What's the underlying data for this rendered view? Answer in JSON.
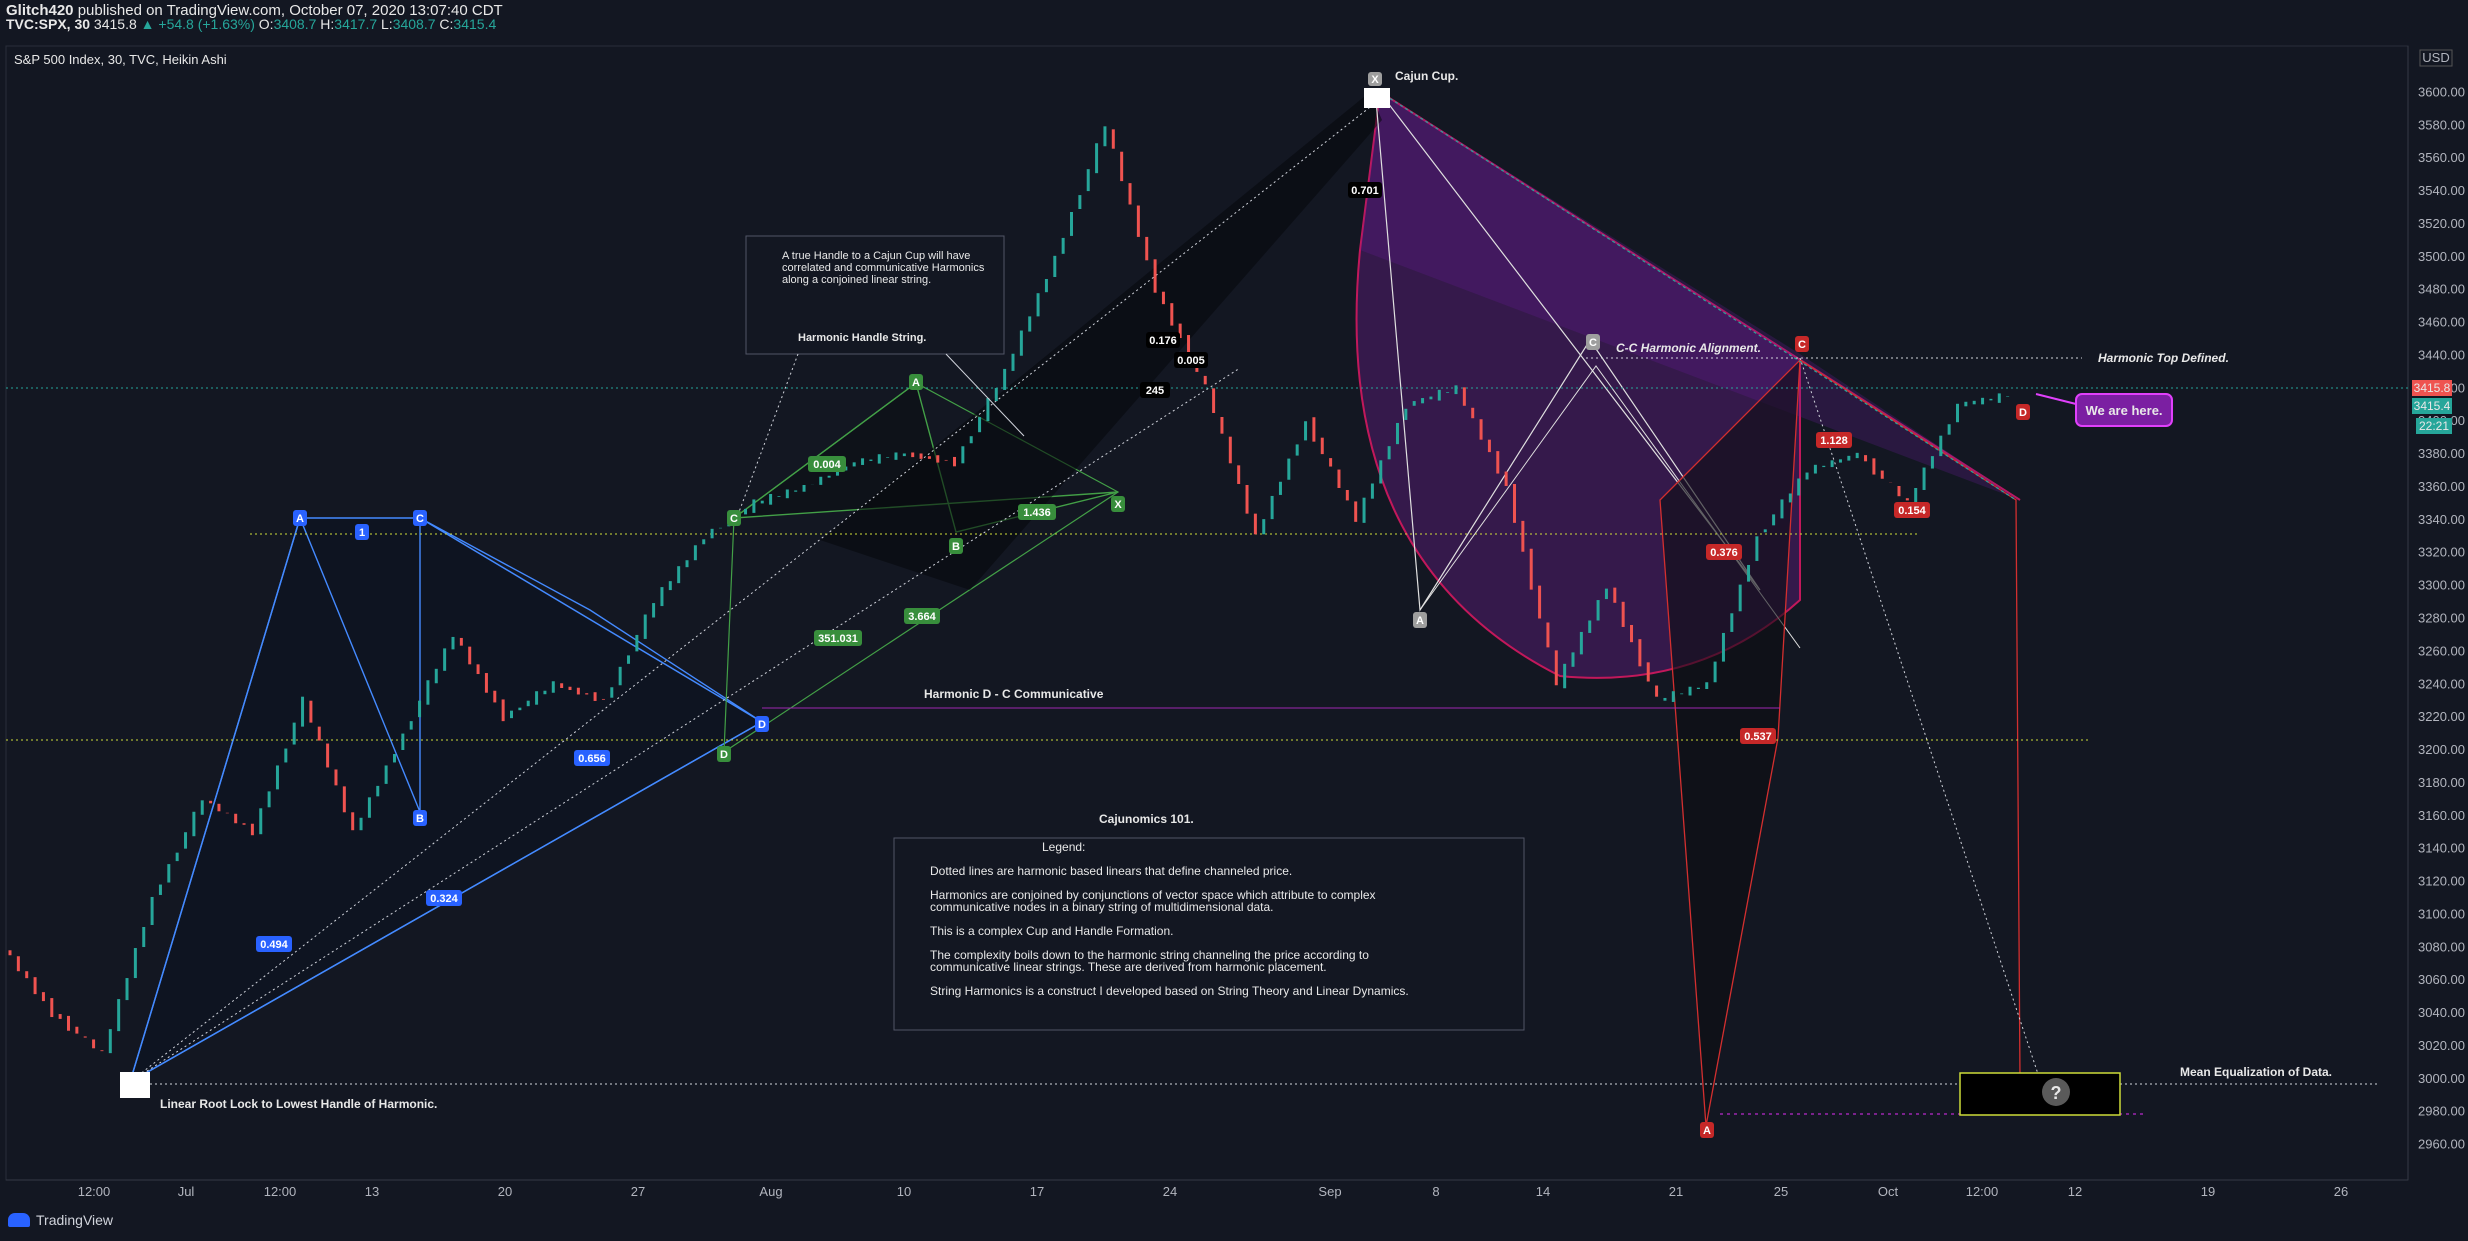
{
  "header": {
    "author": "Glitch420",
    "published_text": "published on TradingView.com, October 07, 2020 13:07:40 CDT",
    "symbol": "TVC:SPX, 30",
    "price": "3415.8",
    "change": "+54.8 (+1.63%)",
    "o_label": "O:",
    "o": "3408.7",
    "h_label": "H:",
    "h": "3417.7",
    "l_label": "L:",
    "l": "3408.7",
    "c_label": "C:",
    "c": "3415.4"
  },
  "legend_title": "S&P 500 Index, 30, TVC, Heikin Ashi",
  "currency": "USD",
  "brand": "TradingView",
  "price_tags": {
    "last": "3415.8",
    "close": "3415.4",
    "timer": "22:21"
  },
  "chart_data": {
    "type": "line",
    "title": "S&P 500 Index, 30, TVC, Heikin Ashi",
    "xlabel": "",
    "ylabel": "",
    "ylim": [
      2950,
      3610
    ],
    "y_ticks": [
      2960,
      2980,
      3000,
      3020,
      3040,
      3060,
      3080,
      3100,
      3120,
      3140,
      3160,
      3180,
      3200,
      3220,
      3240,
      3260,
      3280,
      3300,
      3320,
      3340,
      3360,
      3380,
      3400,
      3420,
      3440,
      3460,
      3480,
      3500,
      3520,
      3540,
      3560,
      3580,
      3600
    ],
    "x_ticks": [
      "12:00",
      "Jul",
      "12:00",
      "13",
      "20",
      "27",
      "Aug",
      "10",
      "17",
      "24",
      "Sep",
      "8",
      "14",
      "21",
      "25",
      "Oct",
      "12:00",
      "12",
      "19",
      "26"
    ],
    "price_path": [
      {
        "x": "Jun 25",
        "y": 3080
      },
      {
        "x": "Jun 26",
        "y": 3040
      },
      {
        "x": "Jun 29",
        "y": 3015
      },
      {
        "x": "Jul 1",
        "y": 3110
      },
      {
        "x": "Jul 6",
        "y": 3170
      },
      {
        "x": "Jul 9",
        "y": 3150
      },
      {
        "x": "Jul 13",
        "y": 3230
      },
      {
        "x": "Jul 14",
        "y": 3150
      },
      {
        "x": "Jul 16",
        "y": 3210
      },
      {
        "x": "Jul 22",
        "y": 3270
      },
      {
        "x": "Jul 24",
        "y": 3220
      },
      {
        "x": "Jul 28",
        "y": 3240
      },
      {
        "x": "Jul 31",
        "y": 3230
      },
      {
        "x": "Aug 3",
        "y": 3290
      },
      {
        "x": "Aug 6",
        "y": 3330
      },
      {
        "x": "Aug 10",
        "y": 3350
      },
      {
        "x": "Aug 12",
        "y": 3360
      },
      {
        "x": "Aug 14",
        "y": 3375
      },
      {
        "x": "Aug 18",
        "y": 3380
      },
      {
        "x": "Aug 21",
        "y": 3375
      },
      {
        "x": "Aug 25",
        "y": 3430
      },
      {
        "x": "Aug 28",
        "y": 3500
      },
      {
        "x": "Sep 2",
        "y": 3580
      },
      {
        "x": "Sep 3",
        "y": 3480
      },
      {
        "x": "Sep 4",
        "y": 3420
      },
      {
        "x": "Sep 8",
        "y": 3330
      },
      {
        "x": "Sep 10",
        "y": 3400
      },
      {
        "x": "Sep 11",
        "y": 3340
      },
      {
        "x": "Sep 14",
        "y": 3410
      },
      {
        "x": "Sep 16",
        "y": 3420
      },
      {
        "x": "Sep 18",
        "y": 3360
      },
      {
        "x": "Sep 21",
        "y": 3240
      },
      {
        "x": "Sep 22",
        "y": 3300
      },
      {
        "x": "Sep 23",
        "y": 3230
      },
      {
        "x": "Sep 24",
        "y": 3240
      },
      {
        "x": "Sep 28",
        "y": 3330
      },
      {
        "x": "Sep 30",
        "y": 3370
      },
      {
        "x": "Oct 2",
        "y": 3380
      },
      {
        "x": "Oct 5",
        "y": 3350
      },
      {
        "x": "Oct 6",
        "y": 3410
      },
      {
        "x": "Oct 7",
        "y": 3415.4
      }
    ],
    "annotations": {
      "cajun_cup": "Cajun Cup.",
      "handle_note": "A true Handle to a Cajun Cup will have correlated and communicative Harmonics along a conjoined linear string.",
      "handle_label": "Harmonic Handle String.",
      "dc_comm": "Harmonic D - C Communicative",
      "cc_align": "C-C Harmonic Alignment.",
      "top_defined": "Harmonic Top Defined.",
      "we_are_here": "We are here.",
      "root_lock": "Linear Root Lock to Lowest Handle of Harmonic.",
      "mean_eq": "Mean Equalization of Data.",
      "question": "?"
    },
    "ratios": [
      "0.494",
      "0.324",
      "0.656",
      "351.031",
      "3.664",
      "1.436",
      "0.004",
      "0.176",
      "0.005",
      "245",
      "0.701",
      "0.537",
      "1.128",
      "0.154",
      "0.376"
    ],
    "points": [
      "A",
      "B",
      "C",
      "D",
      "X",
      "1"
    ]
  },
  "legend_box": {
    "title": "Cajunomics 101.",
    "sub": "Legend:",
    "p1": "Dotted lines are harmonic based linears that define channeled price.",
    "p2a": "Harmonics are conjoined by conjunctions of vector space which attribute to complex",
    "p2b": "communicative nodes in a binary string of multidimensional data.",
    "p3": "This is a complex Cup and Handle Formation.",
    "p4a": "The complexity boils down to the harmonic string channeling the price according to",
    "p4b": "communicative linear strings. These are derived from harmonic placement.",
    "p5": "String Harmonics is a construct I developed based on String Theory and Linear Dynamics."
  },
  "colors": {
    "background": "#131722",
    "up": "#26a69a",
    "down": "#ef5350",
    "blue_harmonic": "#448aff",
    "green_harmonic": "#43a047",
    "purple_cup": "#7b1fa2",
    "red_harmonic": "#c62828"
  }
}
